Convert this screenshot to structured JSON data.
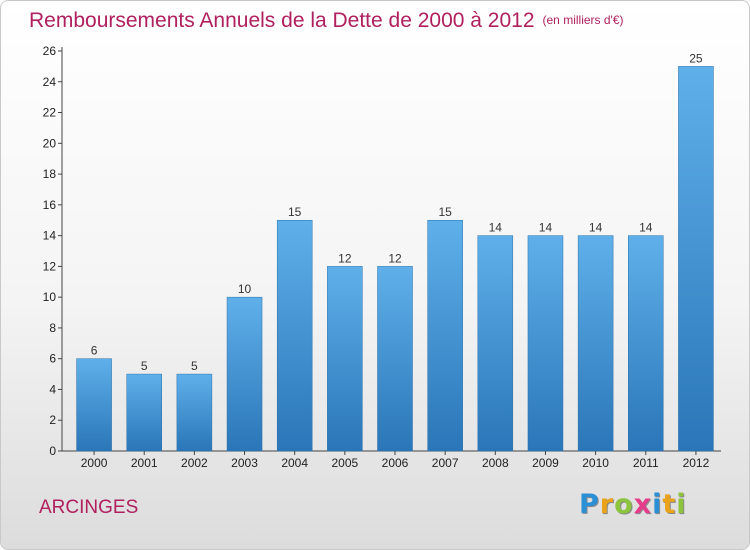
{
  "chart_data": {
    "type": "bar",
    "title": "Remboursements Annuels de la Dette de 2000 à 2012",
    "subtitle": "(en milliers d'€)",
    "categories": [
      "2000",
      "2001",
      "2002",
      "2003",
      "2004",
      "2005",
      "2006",
      "2007",
      "2008",
      "2009",
      "2010",
      "2011",
      "2012"
    ],
    "values": [
      6,
      5,
      5,
      10,
      15,
      12,
      12,
      15,
      14,
      14,
      14,
      14,
      25
    ],
    "ylim": [
      0,
      26
    ],
    "yticks": [
      0,
      2,
      4,
      6,
      8,
      10,
      12,
      14,
      16,
      18,
      20,
      22,
      24,
      26
    ],
    "grid": false,
    "bar_color": "#3d94d6"
  },
  "commune": "ARCINGES",
  "logo": {
    "letters": [
      "P",
      "r",
      "o",
      "x",
      "i",
      "t",
      "i"
    ],
    "colors": [
      "#2b8fd6",
      "#e9a21a",
      "#8cc43d",
      "#e63c8c",
      "#2b8fd6",
      "#e9a21a",
      "#8cc43d"
    ]
  }
}
